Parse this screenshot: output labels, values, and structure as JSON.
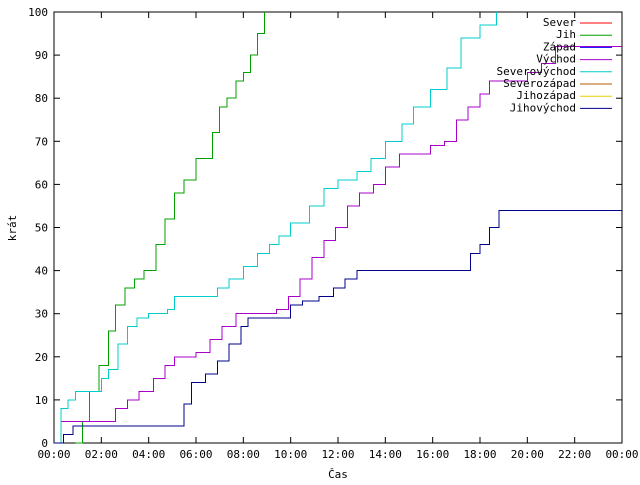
{
  "chart_data": {
    "type": "line",
    "title": "",
    "xlabel": "Čas",
    "ylabel": "krát",
    "xlim": [
      0,
      24
    ],
    "ylim": [
      0,
      100
    ],
    "grid": false,
    "legend_position": "top-right",
    "x_tick_labels": [
      "00:00",
      "02:00",
      "04:00",
      "06:00",
      "08:00",
      "10:00",
      "12:00",
      "14:00",
      "16:00",
      "18:00",
      "20:00",
      "22:00",
      "00:00"
    ],
    "y_tick_labels": [
      "0",
      "10",
      "20",
      "30",
      "40",
      "50",
      "60",
      "70",
      "80",
      "90",
      "100"
    ],
    "series": [
      {
        "name": "Sever",
        "color": "#ff0000",
        "x": [],
        "y": []
      },
      {
        "name": "Jih",
        "color": "#00a000",
        "x": [
          0.9,
          1.2,
          1.5,
          1.9,
          2.3,
          2.6,
          3.0,
          3.4,
          3.8,
          4.3,
          4.7,
          5.1,
          5.5,
          6.0,
          6.4,
          6.7,
          7.0,
          7.3,
          7.7,
          8.0,
          8.3,
          8.6,
          8.9
        ],
        "y": [
          0,
          5,
          12,
          18,
          26,
          32,
          36,
          38,
          40,
          46,
          52,
          58,
          61,
          66,
          66,
          72,
          78,
          80,
          84,
          86,
          90,
          95,
          100
        ]
      },
      {
        "name": "Západ",
        "color": "#0000ff",
        "x": [],
        "y": []
      },
      {
        "name": "Východ",
        "color": "#aa00cc",
        "x": [
          0,
          0.3,
          2.0,
          2.6,
          3.1,
          3.6,
          4.2,
          4.7,
          5.1,
          6.0,
          6.6,
          7.1,
          7.7,
          8.4,
          9.0,
          9.4,
          9.9,
          10.4,
          10.9,
          11.4,
          11.9,
          12.4,
          12.9,
          13.5,
          14.0,
          14.6,
          15.2,
          15.9,
          16.5,
          17.0,
          17.5,
          18.0,
          18.4,
          18.8,
          19.5,
          20.0,
          20.6,
          21.2,
          24
        ],
        "y": [
          0,
          5,
          5,
          8,
          10,
          12,
          15,
          18,
          20,
          21,
          24,
          27,
          30,
          30,
          30,
          31,
          34,
          38,
          43,
          47,
          50,
          55,
          58,
          60,
          64,
          67,
          67,
          69,
          70,
          75,
          78,
          81,
          84,
          84,
          84,
          86,
          88,
          92,
          92
        ]
      },
      {
        "name": "Severovýchod",
        "color": "#00cccc",
        "x": [
          0,
          0.3,
          0.6,
          0.9,
          1.5,
          2.0,
          2.3,
          2.7,
          3.1,
          3.5,
          4.0,
          4.8,
          5.1,
          5.8,
          6.3,
          6.9,
          7.4,
          8.0,
          8.6,
          9.1,
          9.5,
          10.0,
          10.8,
          11.4,
          12.0,
          12.8,
          13.4,
          14.0,
          14.7,
          15.2,
          15.9,
          16.6,
          17.2,
          18.0,
          18.7
        ],
        "y": [
          0,
          8,
          10,
          12,
          12,
          15,
          17,
          23,
          27,
          29,
          30,
          31,
          34,
          34,
          34,
          36,
          38,
          41,
          44,
          46,
          48,
          51,
          55,
          59,
          61,
          63,
          66,
          70,
          74,
          78,
          82,
          87,
          94,
          97,
          100
        ]
      },
      {
        "name": "Severozápad",
        "color": "#b45a00",
        "x": [],
        "y": []
      },
      {
        "name": "Jihozápad",
        "color": "#e8d000",
        "x": [],
        "y": []
      },
      {
        "name": "Jihovýchod",
        "color": "#00008b",
        "x": [
          0,
          0.4,
          0.8,
          2.0,
          4.5,
          5.5,
          5.8,
          6.4,
          6.9,
          7.4,
          7.9,
          8.2,
          9.5,
          10.0,
          10.5,
          11.2,
          11.8,
          12.3,
          12.8,
          14.0,
          16.0,
          17.3,
          17.6,
          18.0,
          18.4,
          18.8,
          24
        ],
        "y": [
          0,
          2,
          4,
          4,
          4,
          9,
          14,
          16,
          19,
          23,
          27,
          29,
          29,
          32,
          33,
          34,
          36,
          38,
          40,
          40,
          40,
          40,
          44,
          46,
          50,
          54,
          54
        ]
      }
    ]
  }
}
